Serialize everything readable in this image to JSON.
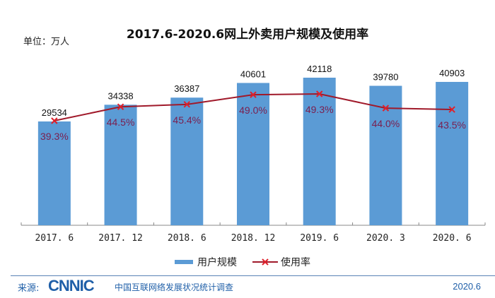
{
  "chart_data": {
    "type": "bar",
    "title": "2017.6-2020.6网上外卖用户规模及使用率",
    "unit_label": "单位：万人",
    "xlabel": "",
    "ylabel": "",
    "categories": [
      "2017.6",
      "2017.12",
      "2018.6",
      "2018.12",
      "2019.6",
      "2020.3",
      "2020.6"
    ],
    "series": [
      {
        "name": "用户规模",
        "type": "bar",
        "color": "#5b9bd5",
        "values": [
          29534,
          34338,
          36387,
          40601,
          42118,
          39780,
          40903
        ]
      },
      {
        "name": "使用率",
        "type": "line",
        "color": "#c0202a",
        "marker": "x",
        "values": [
          39.3,
          44.5,
          45.4,
          49.0,
          49.3,
          44.0,
          43.5
        ],
        "labels": [
          "39.3%",
          "44.5%",
          "45.4%",
          "49.0%",
          "49.3%",
          "44.0%",
          "43.5%"
        ]
      }
    ],
    "legend": {
      "position": "bottom",
      "entries": [
        "用户规模",
        "使用率"
      ]
    },
    "grid": false
  },
  "footer": {
    "source_label": "来源:",
    "logo": "CNNIC",
    "survey": "中国互联网络发展状况统计调查",
    "date": "2020.6"
  }
}
